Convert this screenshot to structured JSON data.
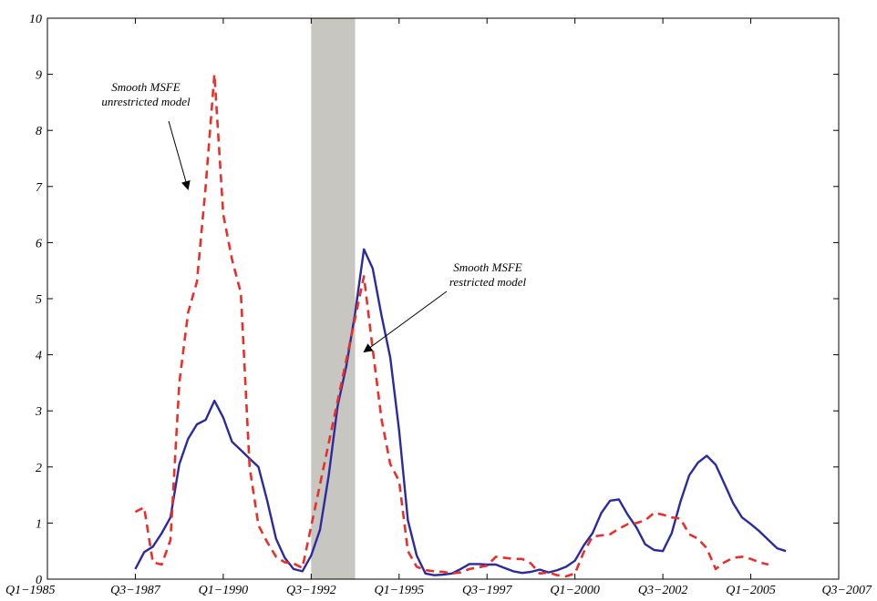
{
  "chart_data": {
    "type": "line",
    "title": "",
    "xlabel": "",
    "ylabel": "",
    "xlim": [
      1985.0,
      2007.5
    ],
    "ylim": [
      0,
      10
    ],
    "x_ticks": [
      {
        "value": 1985.0,
        "label": "Q1−1985"
      },
      {
        "value": 1987.5,
        "label": "Q3−1987"
      },
      {
        "value": 1990.0,
        "label": "Q1−1990"
      },
      {
        "value": 1992.5,
        "label": "Q3−1992"
      },
      {
        "value": 1995.0,
        "label": "Q1−1995"
      },
      {
        "value": 1997.5,
        "label": "Q3−1997"
      },
      {
        "value": 2000.0,
        "label": "Q1−2000"
      },
      {
        "value": 2002.5,
        "label": "Q3−2002"
      },
      {
        "value": 2005.0,
        "label": "Q1−2005"
      },
      {
        "value": 2007.5,
        "label": "Q3−2007"
      }
    ],
    "y_ticks": [
      0,
      1,
      2,
      3,
      4,
      5,
      6,
      7,
      8,
      9,
      10
    ],
    "grid": false,
    "shaded_region": {
      "x0": 1992.5,
      "x1": 1993.75,
      "color": "#c8c6c0"
    },
    "series": [
      {
        "color": "#2b2b9e",
        "style": "solid",
        "points": [
          [
            1987.5,
            0.18
          ],
          [
            1987.75,
            0.48
          ],
          [
            1988.0,
            0.58
          ],
          [
            1988.25,
            0.82
          ],
          [
            1988.5,
            1.1
          ],
          [
            1988.75,
            2.05
          ],
          [
            1989.0,
            2.5
          ],
          [
            1989.25,
            2.76
          ],
          [
            1989.5,
            2.84
          ],
          [
            1989.75,
            3.18
          ],
          [
            1990.0,
            2.88
          ],
          [
            1990.25,
            2.45
          ],
          [
            1990.5,
            2.3
          ],
          [
            1990.75,
            2.15
          ],
          [
            1991.0,
            2.0
          ],
          [
            1991.25,
            1.4
          ],
          [
            1991.5,
            0.72
          ],
          [
            1991.75,
            0.38
          ],
          [
            1992.0,
            0.18
          ],
          [
            1992.25,
            0.14
          ],
          [
            1992.5,
            0.42
          ],
          [
            1992.75,
            0.88
          ],
          [
            1993.0,
            1.85
          ],
          [
            1993.25,
            3.08
          ],
          [
            1993.5,
            3.8
          ],
          [
            1993.75,
            4.75
          ],
          [
            1994.0,
            5.88
          ],
          [
            1994.25,
            5.54
          ],
          [
            1994.5,
            4.7
          ],
          [
            1994.75,
            3.95
          ],
          [
            1995.0,
            2.65
          ],
          [
            1995.25,
            1.05
          ],
          [
            1995.5,
            0.42
          ],
          [
            1995.75,
            0.1
          ],
          [
            1996.0,
            0.07
          ],
          [
            1996.25,
            0.08
          ],
          [
            1996.5,
            0.1
          ],
          [
            1996.75,
            0.18
          ],
          [
            1997.0,
            0.27
          ],
          [
            1997.25,
            0.27
          ],
          [
            1997.5,
            0.26
          ],
          [
            1997.75,
            0.26
          ],
          [
            1998.0,
            0.2
          ],
          [
            1998.25,
            0.14
          ],
          [
            1998.5,
            0.11
          ],
          [
            1998.75,
            0.13
          ],
          [
            1999.0,
            0.17
          ],
          [
            1999.25,
            0.12
          ],
          [
            1999.5,
            0.16
          ],
          [
            1999.75,
            0.22
          ],
          [
            2000.0,
            0.33
          ],
          [
            2000.25,
            0.6
          ],
          [
            2000.5,
            0.82
          ],
          [
            2000.75,
            1.18
          ],
          [
            2001.0,
            1.4
          ],
          [
            2001.25,
            1.42
          ],
          [
            2001.5,
            1.15
          ],
          [
            2001.75,
            0.92
          ],
          [
            2002.0,
            0.62
          ],
          [
            2002.25,
            0.52
          ],
          [
            2002.5,
            0.5
          ],
          [
            2002.75,
            0.82
          ],
          [
            2003.0,
            1.38
          ],
          [
            2003.25,
            1.85
          ],
          [
            2003.5,
            2.08
          ],
          [
            2003.75,
            2.2
          ],
          [
            2004.0,
            2.04
          ],
          [
            2004.25,
            1.7
          ],
          [
            2004.5,
            1.35
          ],
          [
            2004.75,
            1.1
          ],
          [
            2005.0,
            0.98
          ],
          [
            2005.25,
            0.85
          ],
          [
            2005.5,
            0.7
          ],
          [
            2005.75,
            0.55
          ],
          [
            2006.0,
            0.5
          ]
        ]
      },
      {
        "color": "#e8302a",
        "style": "dashed",
        "points": [
          [
            1987.5,
            1.2
          ],
          [
            1987.75,
            1.28
          ],
          [
            1988.0,
            0.3
          ],
          [
            1988.25,
            0.26
          ],
          [
            1988.5,
            0.7
          ],
          [
            1988.75,
            3.5
          ],
          [
            1989.0,
            4.75
          ],
          [
            1989.25,
            5.3
          ],
          [
            1989.5,
            7.0
          ],
          [
            1989.75,
            9.0
          ],
          [
            1990.0,
            6.5
          ],
          [
            1990.25,
            5.7
          ],
          [
            1990.5,
            5.1
          ],
          [
            1990.75,
            2.0
          ],
          [
            1991.0,
            0.96
          ],
          [
            1991.25,
            0.66
          ],
          [
            1991.5,
            0.4
          ],
          [
            1991.75,
            0.3
          ],
          [
            1992.0,
            0.28
          ],
          [
            1992.25,
            0.2
          ],
          [
            1994.0,
            5.4
          ],
          [
            1994.25,
            4.1
          ],
          [
            1994.5,
            2.85
          ],
          [
            1994.75,
            2.05
          ],
          [
            1995.0,
            1.75
          ],
          [
            1995.25,
            0.5
          ],
          [
            1995.5,
            0.22
          ],
          [
            1995.75,
            0.16
          ],
          [
            1996.0,
            0.14
          ],
          [
            1996.25,
            0.13
          ],
          [
            1996.5,
            0.1
          ],
          [
            1996.75,
            0.12
          ],
          [
            1997.0,
            0.18
          ],
          [
            1997.25,
            0.21
          ],
          [
            1997.5,
            0.24
          ],
          [
            1997.75,
            0.4
          ],
          [
            1998.0,
            0.38
          ],
          [
            1998.25,
            0.36
          ],
          [
            1998.5,
            0.36
          ],
          [
            1998.75,
            0.28
          ],
          [
            1999.0,
            0.1
          ],
          [
            1999.25,
            0.12
          ],
          [
            1999.5,
            0.07
          ],
          [
            1999.75,
            0.05
          ],
          [
            2000.0,
            0.1
          ],
          [
            2000.25,
            0.48
          ],
          [
            2000.5,
            0.76
          ],
          [
            2000.75,
            0.78
          ],
          [
            2001.0,
            0.8
          ],
          [
            2001.25,
            0.9
          ],
          [
            2001.5,
            0.98
          ],
          [
            2001.75,
            1.0
          ],
          [
            2002.0,
            1.05
          ],
          [
            2002.25,
            1.18
          ],
          [
            2002.5,
            1.15
          ],
          [
            2002.75,
            1.1
          ],
          [
            2003.0,
            1.08
          ],
          [
            2003.25,
            0.8
          ],
          [
            2003.5,
            0.72
          ],
          [
            2003.75,
            0.55
          ],
          [
            2004.0,
            0.18
          ],
          [
            2004.25,
            0.3
          ],
          [
            2004.5,
            0.38
          ],
          [
            2004.75,
            0.4
          ],
          [
            2005.0,
            0.36
          ],
          [
            2005.25,
            0.3
          ],
          [
            2005.5,
            0.26
          ]
        ]
      }
    ],
    "annotations": [
      {
        "lines": [
          "Smooth MSFE",
          "unrestricted model"
        ],
        "arrow_to": [
          1989.0,
          6.95
        ]
      },
      {
        "lines": [
          "Smooth MSFE",
          "restricted model"
        ],
        "arrow_to": [
          1994.0,
          4.05
        ]
      }
    ]
  }
}
